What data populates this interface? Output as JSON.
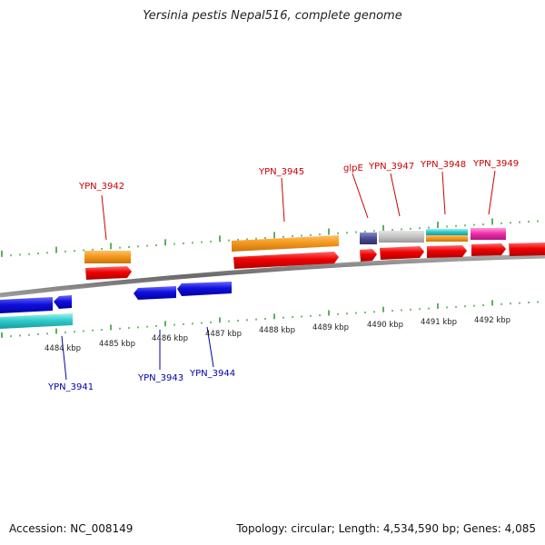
{
  "title": "Yersinia pestis Nepal516, complete genome",
  "footer": {
    "accession": "Accession: NC_008149",
    "summary": "Topology: circular; Length: 4,534,590 bp; Genes: 4,085"
  },
  "colors": {
    "backbone": "#7a7a7a",
    "ticks": "#1f8a1f",
    "forward_label": "#cc0000",
    "reverse_label": "#0000aa"
  },
  "scale_labels": [
    "4484 kbp",
    "4485 kbp",
    "4486 kbp",
    "4487 kbp",
    "4488 kbp",
    "4489 kbp",
    "4490 kbp",
    "4491 kbp",
    "4492 kbp"
  ],
  "forward_labels": [
    "YPN_3942",
    "YPN_3945",
    "glpE",
    "YPN_3947",
    "YPN_3948",
    "YPN_3949"
  ],
  "reverse_labels": [
    "YPN_3941",
    "YPN_3943",
    "YPN_3944"
  ]
}
